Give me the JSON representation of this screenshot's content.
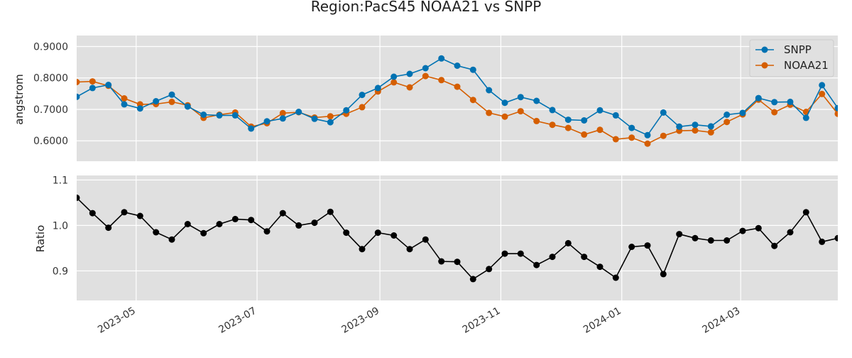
{
  "chart_data": [
    {
      "type": "line",
      "title": "Region:PacS45 NOAA21 vs SNPP",
      "ylabel": "angstrom",
      "ylim": [
        0.535,
        0.935
      ],
      "yticks": [
        "0.6000",
        "0.7000",
        "0.8000",
        "0.9000"
      ],
      "grid": true,
      "legend_position": "top-right",
      "x": [
        "2023-04-01",
        "2023-04-09",
        "2023-04-17",
        "2023-04-25",
        "2023-05-03",
        "2023-05-11",
        "2023-05-19",
        "2023-05-27",
        "2023-06-04",
        "2023-06-12",
        "2023-06-20",
        "2023-06-28",
        "2023-07-06",
        "2023-07-14",
        "2023-07-22",
        "2023-07-30",
        "2023-08-07",
        "2023-08-15",
        "2023-08-23",
        "2023-08-31",
        "2023-09-08",
        "2023-09-16",
        "2023-09-24",
        "2023-10-02",
        "2023-10-10",
        "2023-10-18",
        "2023-10-26",
        "2023-11-03",
        "2023-11-11",
        "2023-11-19",
        "2023-11-27",
        "2023-12-05",
        "2023-12-13",
        "2023-12-21",
        "2023-12-29",
        "2024-01-06",
        "2024-01-14",
        "2024-01-22",
        "2024-01-30",
        "2024-02-07",
        "2024-02-15",
        "2024-02-23",
        "2024-03-02",
        "2024-03-10",
        "2024-03-18",
        "2024-03-26",
        "2024-04-03",
        "2024-04-11",
        "2024-04-19"
      ],
      "series": [
        {
          "name": "SNPP",
          "color": "#0072b2",
          "values": [
            0.74,
            0.768,
            0.778,
            0.716,
            0.703,
            0.726,
            0.747,
            0.709,
            0.683,
            0.681,
            0.681,
            0.639,
            0.662,
            0.671,
            0.692,
            0.67,
            0.659,
            0.697,
            0.746,
            0.768,
            0.804,
            0.813,
            0.831,
            0.862,
            0.839,
            0.826,
            0.761,
            0.721,
            0.739,
            0.727,
            0.698,
            0.667,
            0.665,
            0.697,
            0.681,
            0.641,
            0.618,
            0.69,
            0.645,
            0.651,
            0.646,
            0.683,
            0.689,
            0.736,
            0.723,
            0.724,
            0.673,
            0.777,
            0.704
          ]
        },
        {
          "name": "NOAA21",
          "color": "#d55e00",
          "values": [
            0.787,
            0.789,
            0.775,
            0.735,
            0.716,
            0.717,
            0.724,
            0.713,
            0.673,
            0.683,
            0.69,
            0.645,
            0.656,
            0.688,
            0.691,
            0.674,
            0.678,
            0.686,
            0.707,
            0.757,
            0.786,
            0.77,
            0.806,
            0.793,
            0.772,
            0.73,
            0.689,
            0.677,
            0.694,
            0.663,
            0.651,
            0.641,
            0.62,
            0.635,
            0.605,
            0.61,
            0.591,
            0.616,
            0.632,
            0.633,
            0.627,
            0.66,
            0.684,
            0.731,
            0.691,
            0.715,
            0.692,
            0.749,
            0.686
          ]
        }
      ]
    },
    {
      "type": "line",
      "title": "",
      "xlabel": "",
      "ylabel": "Ratio",
      "ylim": [
        0.835,
        1.11
      ],
      "yticks": [
        "0.9",
        "1.0",
        "1.1"
      ],
      "xticks": [
        "2023-05",
        "2023-07",
        "2023-09",
        "2023-11",
        "2024-01",
        "2024-03"
      ],
      "grid": true,
      "series": [
        {
          "color": "#000000",
          "values": [
            1.061,
            1.027,
            0.995,
            1.029,
            1.021,
            0.985,
            0.969,
            1.003,
            0.983,
            1.003,
            1.014,
            1.012,
            0.987,
            1.027,
            1.0,
            1.006,
            1.03,
            0.984,
            0.948,
            0.984,
            0.978,
            0.948,
            0.969,
            0.921,
            0.92,
            0.882,
            0.904,
            0.938,
            0.938,
            0.913,
            0.931,
            0.961,
            0.931,
            0.909,
            0.885,
            0.953,
            0.956,
            0.893,
            0.981,
            0.972,
            0.967,
            0.967,
            0.988,
            0.994,
            0.955,
            0.985,
            1.029,
            0.964,
            0.972
          ]
        }
      ]
    }
  ]
}
